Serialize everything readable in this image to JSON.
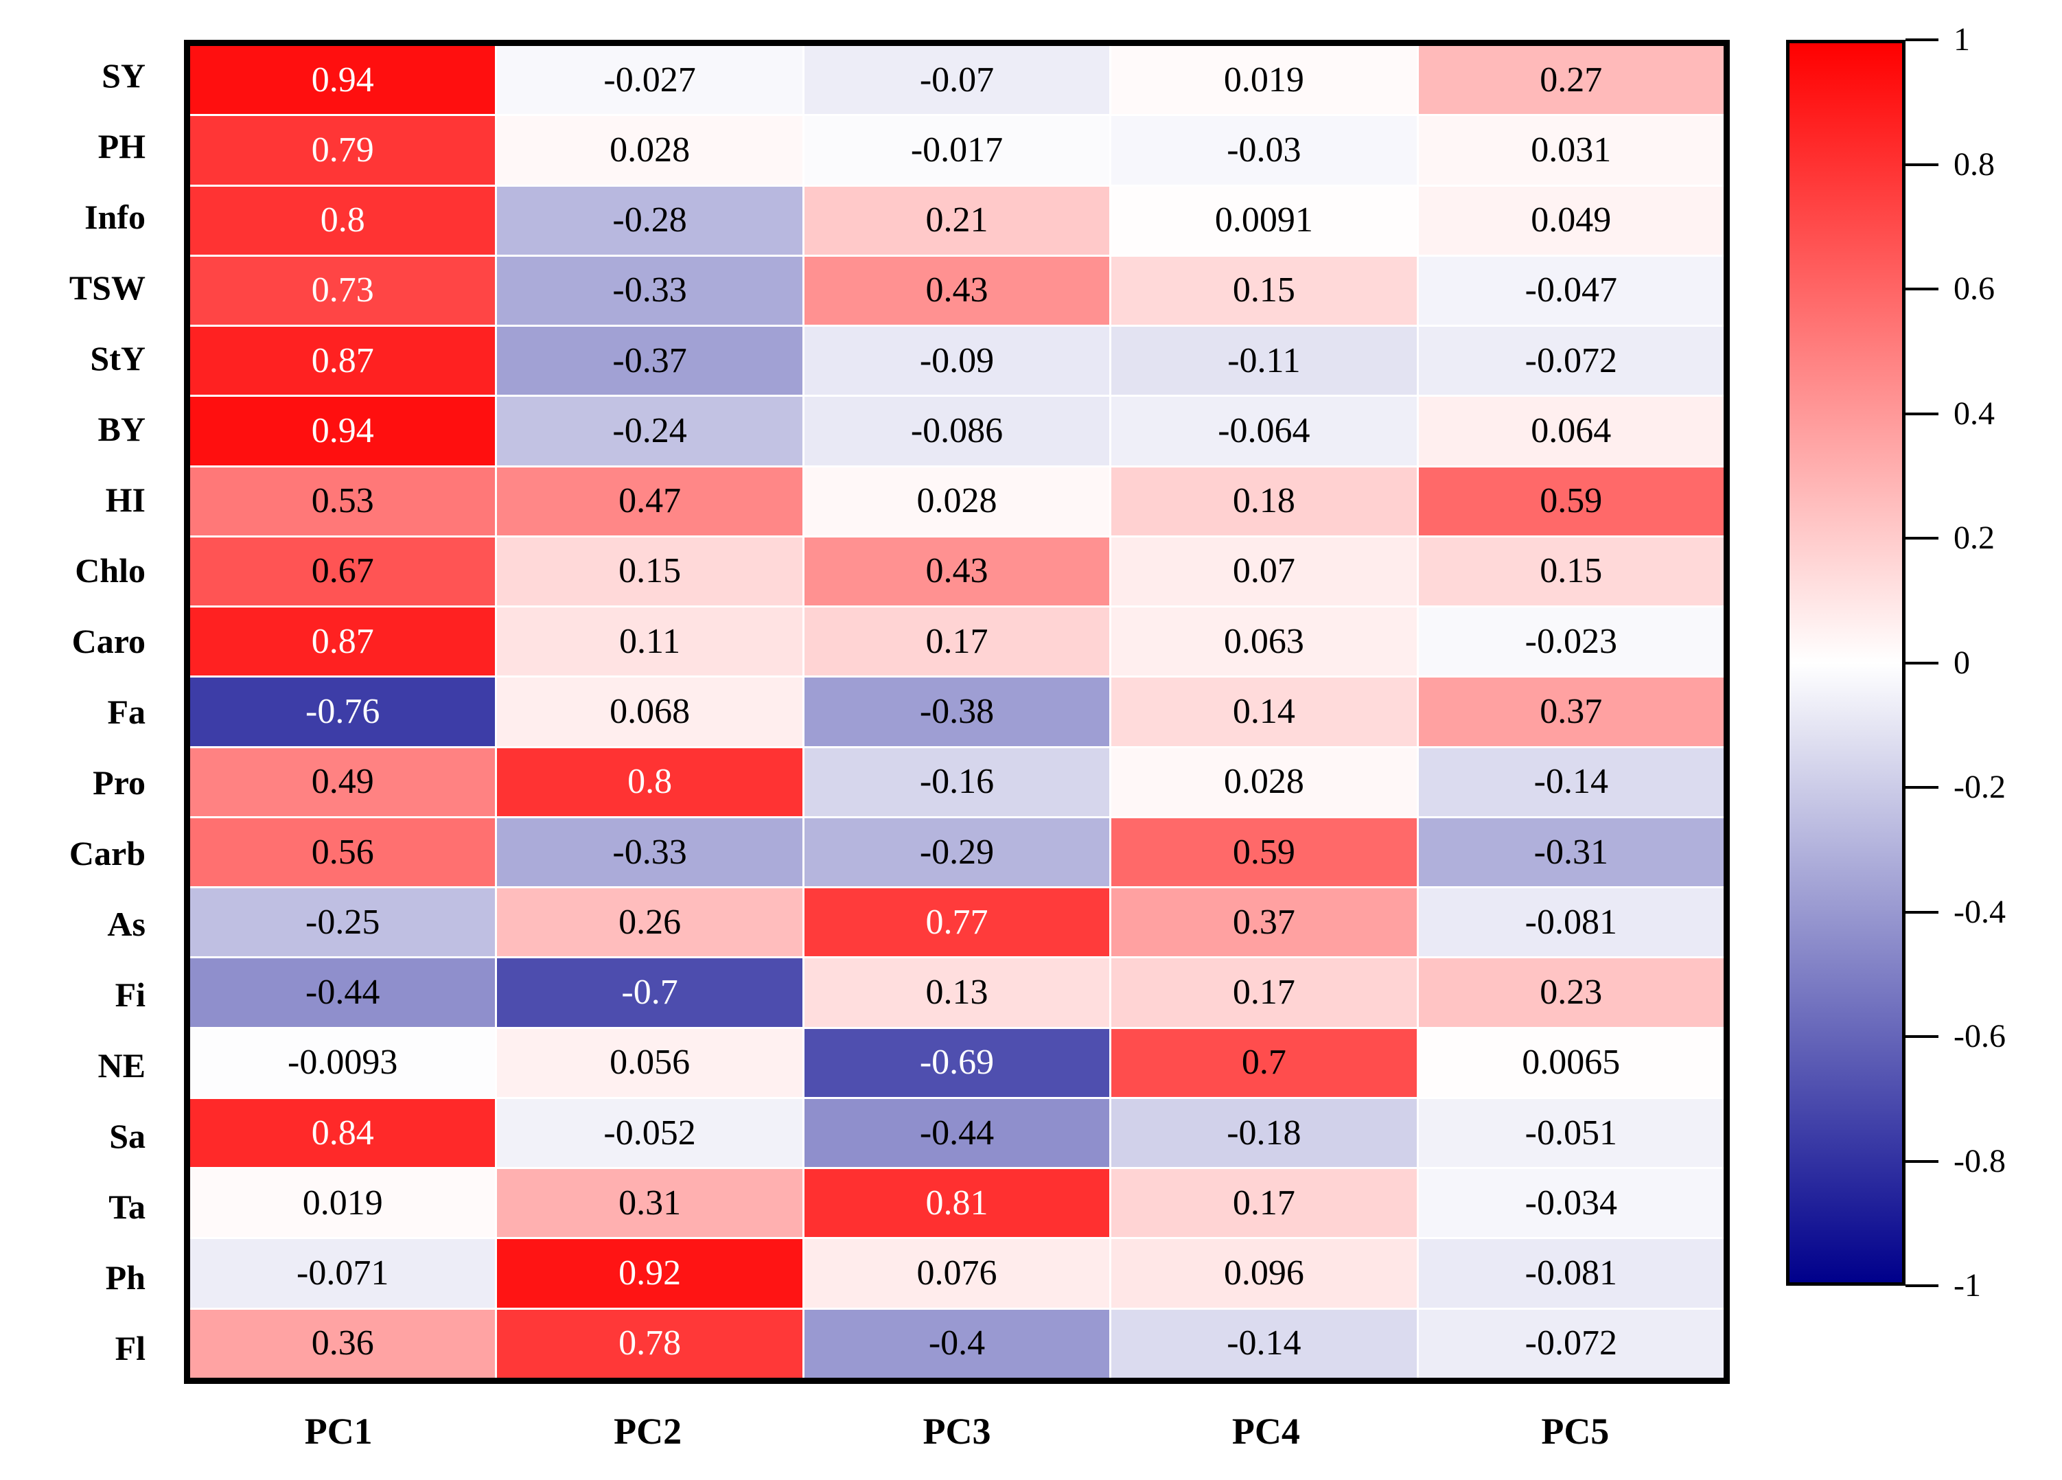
{
  "figure": {
    "background": "#ffffff",
    "description": "PCA loadings correlation heatmap"
  },
  "chart_data": {
    "type": "heatmap",
    "title": "",
    "xlabel": "",
    "ylabel": "",
    "rows": [
      "SY",
      "PH",
      "Info",
      "TSW",
      "StY",
      "BY",
      "HI",
      "Chlo",
      "Caro",
      "Fa",
      "Pro",
      "Carb",
      "As",
      "Fi",
      "NE",
      "Sa",
      "Ta",
      "Ph",
      "Fl"
    ],
    "columns": [
      "PC1",
      "PC2",
      "PC3",
      "PC4",
      "PC5"
    ],
    "cells": [
      [
        "0.94",
        "-0.027",
        "-0.07",
        "0.019",
        "0.27"
      ],
      [
        "0.79",
        "0.028",
        "-0.017",
        "-0.03",
        "0.031"
      ],
      [
        "0.8",
        "-0.28",
        "0.21",
        "0.0091",
        "0.049"
      ],
      [
        "0.73",
        "-0.33",
        "0.43",
        "0.15",
        "-0.047"
      ],
      [
        "0.87",
        "-0.37",
        "-0.09",
        "-0.11",
        "-0.072"
      ],
      [
        "0.94",
        "-0.24",
        "-0.086",
        "-0.064",
        "0.064"
      ],
      [
        "0.53",
        "0.47",
        "0.028",
        "0.18",
        "0.59"
      ],
      [
        "0.67",
        "0.15",
        "0.43",
        "0.07",
        "0.15"
      ],
      [
        "0.87",
        "0.11",
        "0.17",
        "0.063",
        "-0.023"
      ],
      [
        "-0.76",
        "0.068",
        "-0.38",
        "0.14",
        "0.37"
      ],
      [
        "0.49",
        "0.8",
        "-0.16",
        "0.028",
        "-0.14"
      ],
      [
        "0.56",
        "-0.33",
        "-0.29",
        "0.59",
        "-0.31"
      ],
      [
        "-0.25",
        "0.26",
        "0.77",
        "0.37",
        "-0.081"
      ],
      [
        "-0.44",
        "-0.7",
        "0.13",
        "0.17",
        "0.23"
      ],
      [
        "-0.0093",
        "0.056",
        "-0.69",
        "0.7",
        "0.0065"
      ],
      [
        "0.84",
        "-0.052",
        "-0.44",
        "-0.18",
        "-0.051"
      ],
      [
        "0.019",
        "0.31",
        "0.81",
        "0.17",
        "-0.034"
      ],
      [
        "-0.071",
        "0.92",
        "0.076",
        "0.096",
        "-0.081"
      ],
      [
        "0.36",
        "0.78",
        "-0.4",
        "-0.14",
        "-0.072"
      ]
    ],
    "colorscale": {
      "range": [
        -1,
        1
      ],
      "max_color": "#ff0000",
      "mid_color": "#ffffff",
      "min_color": "#00008b",
      "cell_text_dark": "#000000",
      "cell_text_light": "#ffffff"
    },
    "colorbar": {
      "position": "right",
      "ticks": [
        "1",
        "0.8",
        "0.6",
        "0.4",
        "0.2",
        "0",
        "-0.2",
        "-0.4",
        "-0.6",
        "-0.8",
        "-1"
      ]
    },
    "grid": false,
    "legend_position": "right"
  }
}
